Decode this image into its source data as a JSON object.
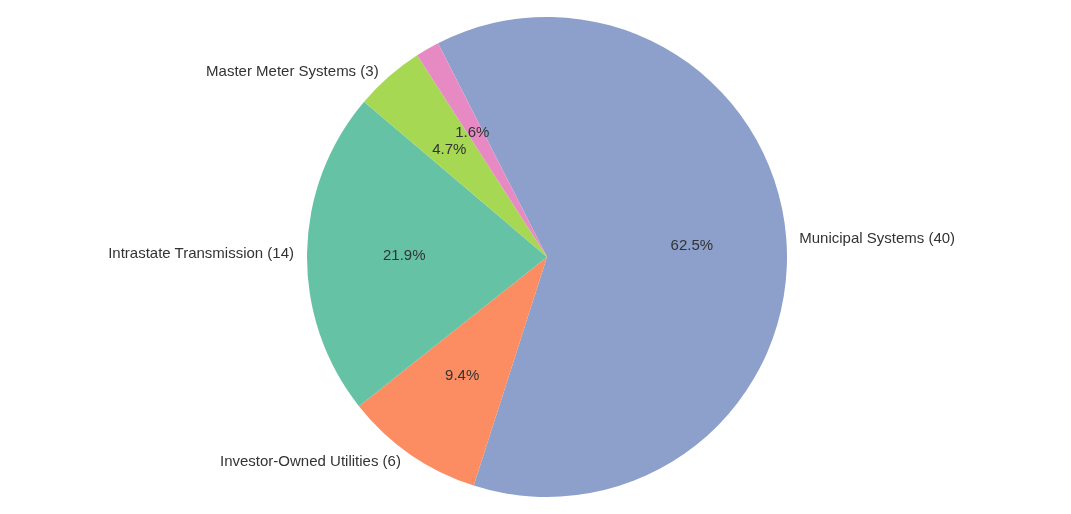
{
  "chart_data": {
    "type": "pie",
    "categories": [
      "Municipal Systems (40)",
      "Investor-Owned Utilities (6)",
      "Intrastate Transmission (14)",
      "Master Meter Systems (3)",
      null
    ],
    "values": [
      62.5,
      9.4,
      21.9,
      4.7,
      1.6
    ],
    "colors": [
      "#8da0cb",
      "#fc8d62",
      "#66c2a5",
      "#a6d854",
      "#e78ac3"
    ],
    "value_labels": [
      "62.5%",
      "9.4%",
      "21.9%",
      "4.7%",
      "1.6%"
    ]
  }
}
